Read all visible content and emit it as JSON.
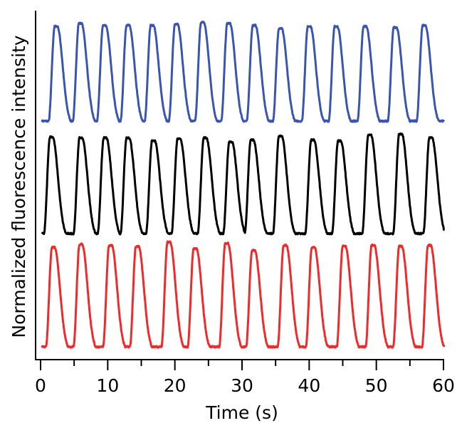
{
  "chart_data": {
    "type": "line",
    "title": "",
    "xlabel": "Time (s)",
    "ylabel": "Normalized fluorescence intensity",
    "xlim": [
      0,
      60
    ],
    "xticks": [
      0,
      10,
      20,
      30,
      40,
      50,
      60
    ],
    "x_minor_ticks": [
      5,
      15,
      25,
      35,
      45,
      55
    ],
    "ylim": [
      0,
      1
    ],
    "yticks": [],
    "grid": false,
    "legend": "none",
    "layout": "stacked, offset traces",
    "series": [
      {
        "color": "#3a55b0",
        "peak_times": [
          2.1,
          5.7,
          9.3,
          12.8,
          16.4,
          20.0,
          23.9,
          27.8,
          31.6,
          35.5,
          39.8,
          43.8,
          48.1,
          52.6,
          56.9
        ],
        "peak_values": [
          0.95,
          0.98,
          0.96,
          0.96,
          0.96,
          0.97,
          0.99,
          0.98,
          0.96,
          0.93,
          0.95,
          0.95,
          0.95,
          0.94,
          0.96
        ]
      },
      {
        "color": "#000000",
        "peak_times": [
          1.4,
          5.8,
          9.4,
          12.8,
          16.6,
          20.4,
          24.3,
          28.1,
          31.3,
          35.5,
          40.3,
          44.3,
          48.8,
          53.4,
          57.9
        ],
        "peak_values": [
          0.97,
          0.96,
          0.96,
          0.96,
          0.93,
          0.95,
          0.96,
          0.92,
          0.94,
          0.98,
          0.94,
          0.93,
          0.99,
          1.0,
          0.96
        ]
      },
      {
        "color": "#ee2a2a",
        "peak_times": [
          1.7,
          5.8,
          10.2,
          14.2,
          18.9,
          22.8,
          27.5,
          31.5,
          36.2,
          40.4,
          45.0,
          49.3,
          53.4,
          57.7
        ],
        "peak_values": [
          0.95,
          0.98,
          0.97,
          0.96,
          1.0,
          0.94,
          0.99,
          0.92,
          0.97,
          0.95,
          0.96,
          0.97,
          0.96,
          0.97
        ]
      }
    ]
  }
}
